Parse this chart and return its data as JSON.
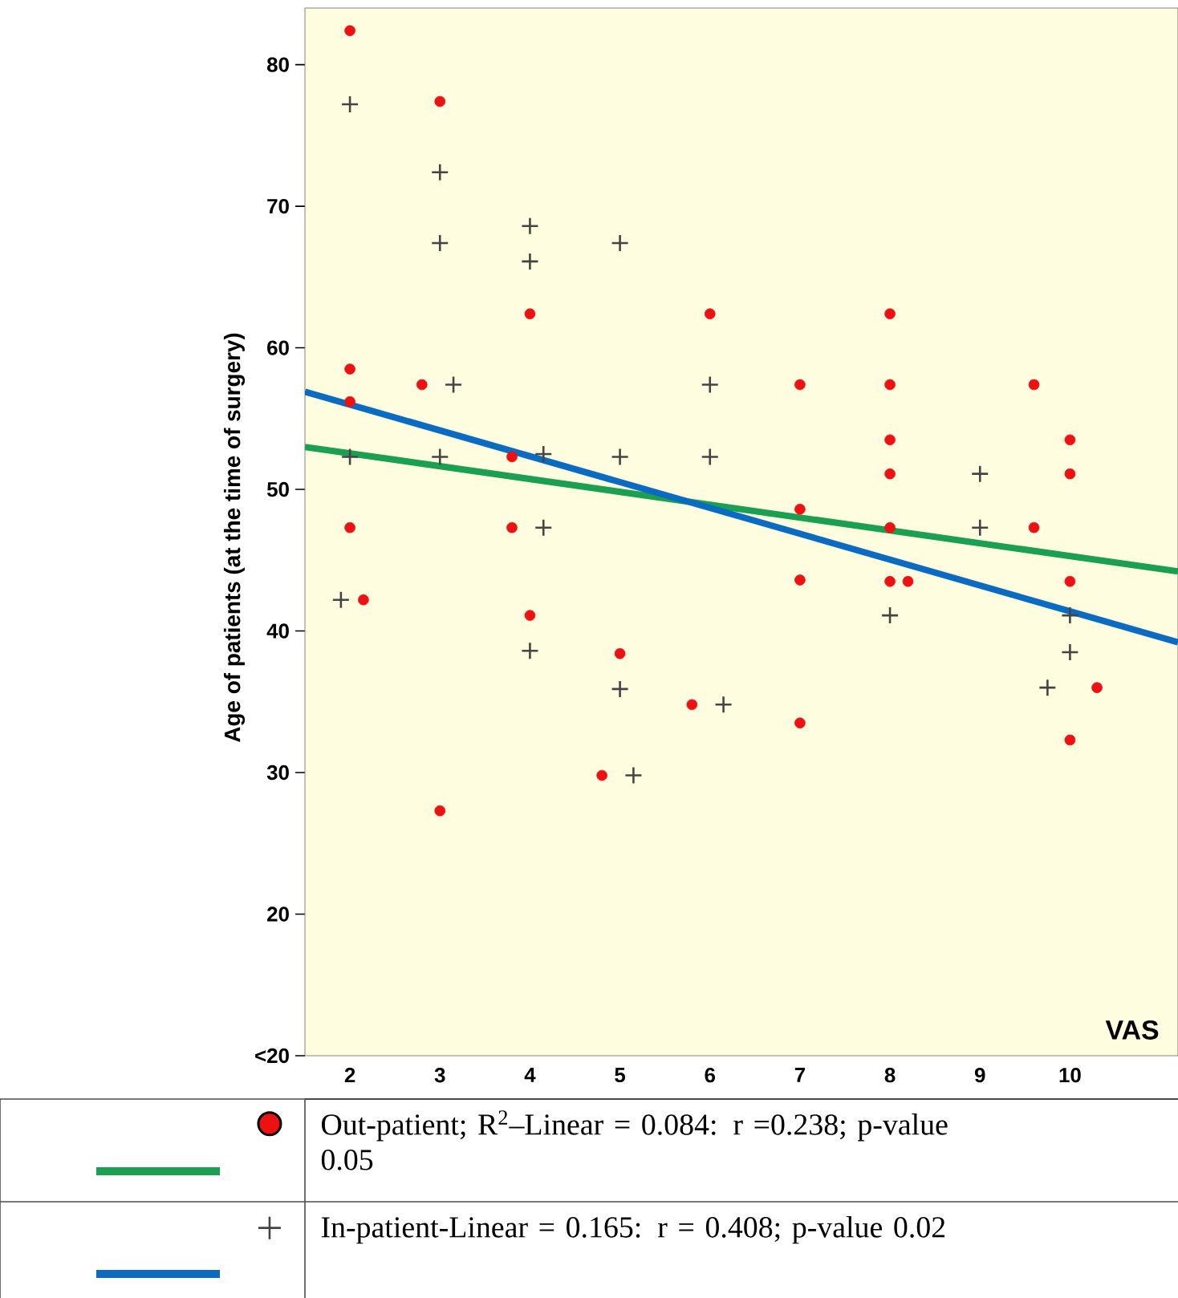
{
  "chart_data": {
    "type": "scatter",
    "ylabel": "Age of patients (at the time of surgery)",
    "xlabel": "VAS",
    "xlim": [
      1.5,
      11.2
    ],
    "ylim": [
      10,
      84
    ],
    "xticks": [
      2,
      3,
      4,
      5,
      6,
      7,
      8,
      9,
      10
    ],
    "yticks": [
      {
        "value": 10,
        "label": "<20"
      },
      20,
      30,
      40,
      50,
      60,
      70,
      80
    ],
    "legend": "bottom",
    "grid": false,
    "series": [
      {
        "name": "Out-patient; R$^{2}$–Linear = 0.084: r =0.238; p-value 0.05",
        "type": "scatter",
        "marker": "circle",
        "color": "#ee1111",
        "x": [
          2,
          2,
          2,
          2,
          2.15,
          3,
          2.8,
          3,
          4,
          3.8,
          3.8,
          4,
          5,
          4.8,
          6,
          5.8,
          7,
          7,
          7,
          7,
          8,
          8,
          8,
          8,
          8,
          8,
          8.2,
          9.6,
          10,
          10,
          9.6,
          10,
          10.3,
          10
        ],
        "values": [
          82.4,
          58.5,
          56.2,
          47.3,
          42.2,
          77.4,
          57.4,
          27.3,
          62.4,
          52.3,
          47.3,
          41.1,
          38.4,
          29.8,
          62.4,
          34.8,
          57.4,
          48.6,
          43.6,
          33.5,
          62.4,
          57.4,
          53.5,
          51.1,
          47.3,
          43.5,
          43.5,
          57.4,
          53.5,
          51.1,
          47.3,
          43.5,
          36.0,
          32.3
        ]
      },
      {
        "name": "In-patient-Linear = 0.165: r = 0.408; p-value 0.02",
        "type": "scatter",
        "marker": "cross",
        "color": "#444444",
        "x": [
          2,
          2,
          1.9,
          3,
          3,
          3.15,
          3,
          4,
          4,
          4.15,
          4.15,
          4,
          5,
          5,
          5,
          5.15,
          6,
          6,
          6.15,
          8,
          9,
          9,
          10,
          10,
          9.75
        ],
        "values": [
          77.2,
          52.3,
          42.2,
          72.4,
          67.4,
          57.4,
          52.3,
          68.6,
          66.1,
          52.5,
          47.3,
          38.6,
          67.4,
          52.3,
          35.9,
          29.8,
          57.4,
          52.3,
          34.8,
          41.1,
          51.1,
          47.3,
          41.1,
          38.5,
          36.0
        ]
      },
      {
        "type": "line",
        "color": "#1aa050",
        "x": [
          1.5,
          11.2
        ],
        "values": [
          53.0,
          44.2
        ]
      },
      {
        "type": "line",
        "color": "#0a6bc0",
        "x": [
          1.5,
          11.2
        ],
        "values": [
          56.9,
          39.2
        ]
      }
    ]
  }
}
